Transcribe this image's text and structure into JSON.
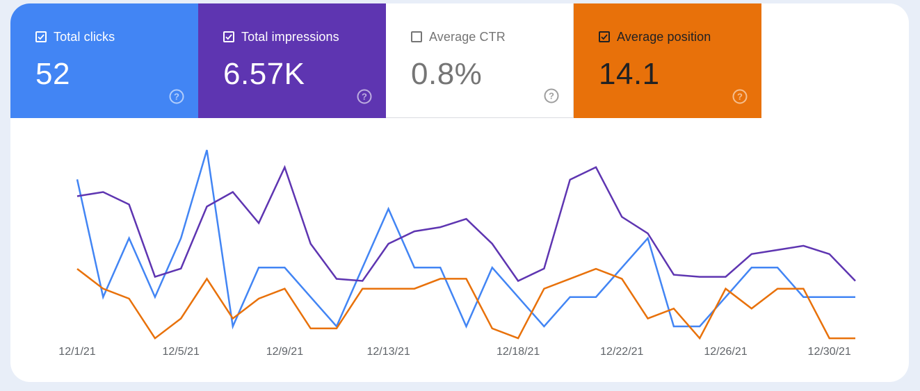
{
  "metrics": [
    {
      "label": "Total clicks",
      "value": "52",
      "checked": true,
      "color": "#4285f4"
    },
    {
      "label": "Total impressions",
      "value": "6.57K",
      "checked": true,
      "color": "#5e35b1"
    },
    {
      "label": "Average CTR",
      "value": "0.8%",
      "checked": false,
      "color": "#ffffff"
    },
    {
      "label": "Average position",
      "value": "14.1",
      "checked": true,
      "color": "#e8710a"
    }
  ],
  "help_icon": "help-circle-icon",
  "check_icon": "checkbox-checked-icon",
  "chart_data": {
    "type": "line",
    "x": [
      "12/1/21",
      "12/2/21",
      "12/3/21",
      "12/4/21",
      "12/5/21",
      "12/6/21",
      "12/7/21",
      "12/8/21",
      "12/9/21",
      "12/10/21",
      "12/11/21",
      "12/12/21",
      "12/13/21",
      "12/14/21",
      "12/15/21",
      "12/16/21",
      "12/17/21",
      "12/18/21",
      "12/19/21",
      "12/20/21",
      "12/21/21",
      "12/22/21",
      "12/23/21",
      "12/24/21",
      "12/25/21",
      "12/26/21",
      "12/27/21",
      "12/28/21",
      "12/29/21",
      "12/30/21",
      "12/31/21"
    ],
    "tick_labels": [
      "12/1/21",
      "12/5/21",
      "12/9/21",
      "12/13/21",
      "12/18/21",
      "12/22/21",
      "12/26/21",
      "12/30/21"
    ],
    "series": [
      {
        "name": "Total clicks",
        "color": "#4285f4",
        "values": [
          5,
          1,
          3,
          1,
          3,
          6,
          0,
          2,
          2,
          1,
          0,
          2,
          4,
          2,
          2,
          0,
          2,
          1,
          0,
          1,
          1,
          2,
          3,
          0,
          0,
          1,
          2,
          2,
          1,
          1,
          1
        ]
      },
      {
        "name": "Total impressions",
        "color": "#5e35b1",
        "values": [
          315,
          325,
          295,
          120,
          140,
          290,
          325,
          250,
          385,
          200,
          115,
          110,
          200,
          230,
          240,
          260,
          200,
          110,
          140,
          355,
          385,
          265,
          225,
          125,
          120,
          120,
          175,
          185,
          195,
          175,
          110
        ]
      },
      {
        "name": "Average position",
        "color": "#e8710a",
        "values": [
          14,
          16,
          17,
          21,
          19,
          15,
          19,
          17,
          16,
          20,
          20,
          16,
          16,
          16,
          15,
          15,
          20,
          21,
          16,
          15,
          14,
          15,
          19,
          18,
          21,
          16,
          18,
          16,
          16,
          21,
          21
        ]
      }
    ],
    "grid": false,
    "legend": "none"
  }
}
